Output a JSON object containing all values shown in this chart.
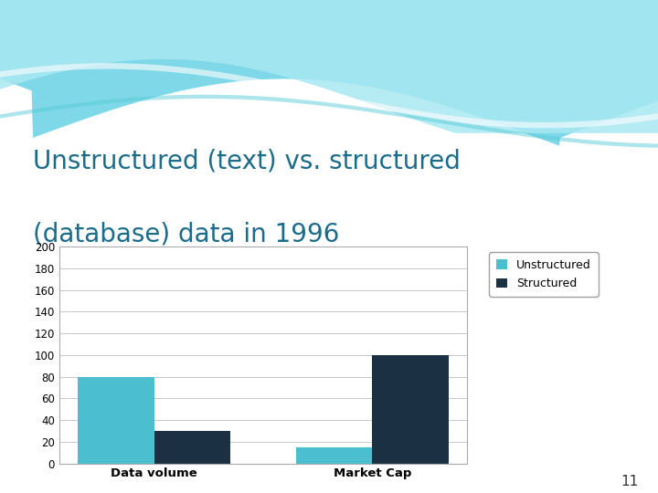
{
  "title_line1": "Unstructured (text) vs. structured",
  "title_line2": "(database) data in 1996",
  "categories": [
    "Data volume",
    "Market Cap"
  ],
  "unstructured_values": [
    80,
    15
  ],
  "structured_values": [
    30,
    100
  ],
  "unstructured_color": "#4BBFCF",
  "structured_color": "#1C3044",
  "ylim": [
    0,
    200
  ],
  "yticks": [
    0,
    20,
    40,
    60,
    80,
    100,
    120,
    140,
    160,
    180,
    200
  ],
  "legend_labels": [
    "Unstructured",
    "Structured"
  ],
  "title_color": "#1B6B8A",
  "background_color": "#FFFFFF",
  "page_number": "11",
  "bar_width": 0.35,
  "chart_facecolor": "#FFFFFF",
  "grid_color": "#C8C8C8"
}
